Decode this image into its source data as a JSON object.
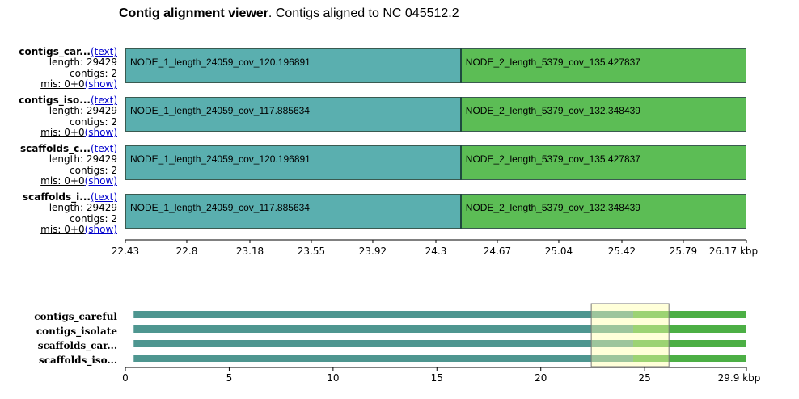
{
  "title": {
    "bold": "Contig alignment viewer",
    "rest": ". Contigs aligned to NC 045512.2"
  },
  "colors": {
    "teal": "#5aafaf",
    "green": "#5cbd55",
    "teal_ov": "#4e9690",
    "green_ov": "#4caf45"
  },
  "rows": [
    {
      "name": "contigs_car...",
      "text_link": "(text)",
      "length": "length: 29429",
      "contigs": "contigs: 2",
      "mis": "mis: 0+0",
      "show_link": "(show)",
      "block1": "NODE_1_length_24059_cov_120.196891",
      "block2": "NODE_2_length_5379_cov_135.427837"
    },
    {
      "name": "contigs_iso...",
      "text_link": "(text)",
      "length": "length: 29429",
      "contigs": "contigs: 2",
      "mis": "mis: 0+0",
      "show_link": "(show)",
      "block1": "NODE_1_length_24059_cov_117.885634",
      "block2": "NODE_2_length_5379_cov_132.348439"
    },
    {
      "name": "scaffolds_c...",
      "text_link": "(text)",
      "length": "length: 29429",
      "contigs": "contigs: 2",
      "mis": "mis: 0+0",
      "show_link": "(show)",
      "block1": "NODE_1_length_24059_cov_120.196891",
      "block2": "NODE_2_length_5379_cov_135.427837"
    },
    {
      "name": "scaffolds_i...",
      "text_link": "(text)",
      "length": "length: 29429",
      "contigs": "contigs: 2",
      "mis": "mis: 0+0",
      "show_link": "(show)",
      "block1": "NODE_1_length_24059_cov_117.885634",
      "block2": "NODE_2_length_5379_cov_132.348439"
    }
  ],
  "main_axis": {
    "min": 22.43,
    "max": 26.17,
    "split": 24.45,
    "ticks": [
      "22.43",
      "22.8",
      "23.18",
      "23.55",
      "23.92",
      "24.3",
      "24.67",
      "25.04",
      "25.42",
      "25.79",
      "26.17 kbp"
    ],
    "tick_values": [
      22.43,
      22.8,
      23.18,
      23.55,
      23.92,
      24.3,
      24.67,
      25.04,
      25.42,
      25.79,
      26.17
    ]
  },
  "overview": {
    "labels": [
      "contigs_careful",
      "contigs_isolate",
      "scaffolds_car...",
      "scaffolds_iso..."
    ],
    "axis_min": 0,
    "axis_max": 29.9,
    "bar_start": 0.4,
    "split": 24.45,
    "bar_end": 29.9,
    "window": [
      22.43,
      26.17
    ],
    "ticks": [
      "0",
      "5",
      "10",
      "15",
      "20",
      "25",
      "29.9 kbp"
    ],
    "tick_values": [
      0,
      5,
      10,
      15,
      20,
      25,
      29.9
    ]
  }
}
